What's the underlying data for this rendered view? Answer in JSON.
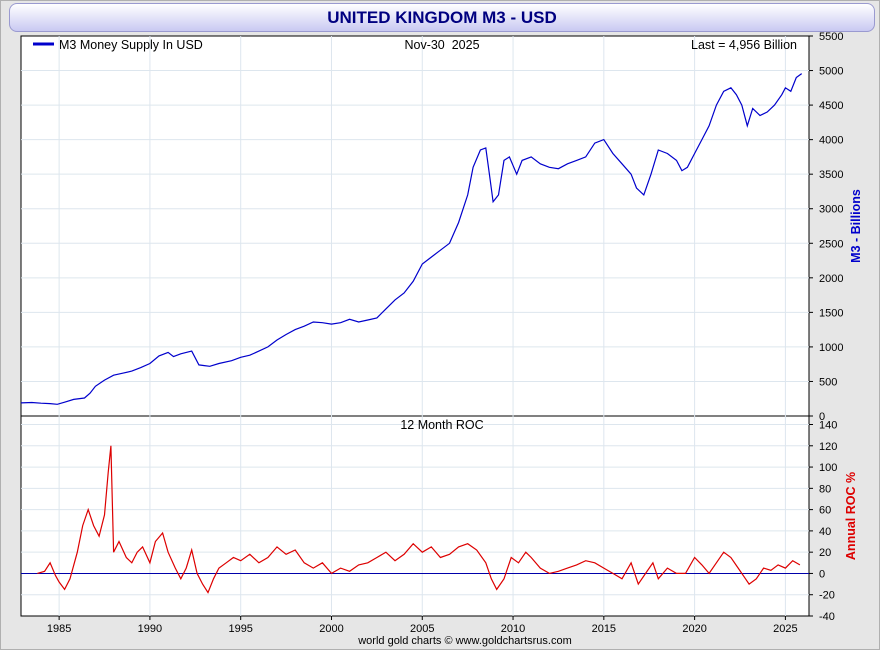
{
  "header": {
    "title": "UNITED KINGDOM M3 - USD"
  },
  "chart_data": [
    {
      "type": "line",
      "title": "Nov-30  2025",
      "legend": "M3 Money Supply In USD",
      "last_label": "Last = 4,956 Billion",
      "ylabel": "M3 - Billions",
      "ylim": [
        0,
        5500
      ],
      "yticks": [
        0,
        500,
        1000,
        1500,
        2000,
        2500,
        3000,
        3500,
        4000,
        4500,
        5000,
        5500
      ],
      "xlim": [
        1982.9,
        2026.3
      ],
      "color": "#0000cc",
      "grid": true,
      "legend_position": "top-left",
      "series": [
        {
          "name": "M3 Money Supply In USD",
          "x": [
            1982.9,
            1983.5,
            1984.0,
            1984.5,
            1984.9,
            1985.3,
            1985.8,
            1986.4,
            1986.7,
            1987.0,
            1987.5,
            1988.0,
            1988.5,
            1989.0,
            1989.5,
            1990.0,
            1990.5,
            1991.0,
            1991.3,
            1991.7,
            1992.3,
            1992.7,
            1993.0,
            1993.3,
            1993.8,
            1994.5,
            1995.0,
            1995.5,
            1996.0,
            1996.5,
            1997.0,
            1997.5,
            1998.0,
            1998.5,
            1999.0,
            1999.5,
            2000.0,
            2000.5,
            2001.0,
            2001.5,
            2002.0,
            2002.5,
            2003.0,
            2003.5,
            2004.0,
            2004.5,
            2005.0,
            2005.5,
            2006.0,
            2006.5,
            2007.0,
            2007.5,
            2007.8,
            2008.2,
            2008.5,
            2008.7,
            2008.9,
            2009.2,
            2009.5,
            2009.8,
            2010.2,
            2010.5,
            2011.0,
            2011.5,
            2012.0,
            2012.5,
            2013.0,
            2013.5,
            2014.0,
            2014.5,
            2015.0,
            2015.5,
            2016.0,
            2016.5,
            2016.8,
            2017.2,
            2017.6,
            2018.0,
            2018.5,
            2019.0,
            2019.3,
            2019.6,
            2020.0,
            2020.4,
            2020.8,
            2021.2,
            2021.6,
            2022.0,
            2022.3,
            2022.6,
            2022.9,
            2023.2,
            2023.6,
            2024.0,
            2024.4,
            2024.8,
            2025.0,
            2025.3,
            2025.6,
            2025.9
          ],
          "values": [
            190,
            195,
            185,
            180,
            170,
            200,
            240,
            260,
            330,
            430,
            520,
            590,
            620,
            650,
            700,
            760,
            870,
            920,
            860,
            900,
            940,
            740,
            730,
            720,
            760,
            800,
            850,
            880,
            940,
            1000,
            1100,
            1180,
            1250,
            1300,
            1360,
            1350,
            1330,
            1350,
            1400,
            1360,
            1390,
            1420,
            1550,
            1680,
            1780,
            1950,
            2200,
            2300,
            2400,
            2500,
            2800,
            3200,
            3600,
            3850,
            3880,
            3500,
            3100,
            3200,
            3700,
            3750,
            3500,
            3700,
            3750,
            3650,
            3600,
            3580,
            3650,
            3700,
            3750,
            3950,
            4000,
            3800,
            3650,
            3500,
            3300,
            3200,
            3500,
            3850,
            3800,
            3700,
            3550,
            3600,
            3800,
            4000,
            4200,
            4500,
            4700,
            4750,
            4650,
            4500,
            4200,
            4450,
            4350,
            4400,
            4500,
            4650,
            4750,
            4700,
            4900,
            4956
          ]
        }
      ]
    },
    {
      "type": "line",
      "title": "12 Month ROC",
      "ylabel": "Annual ROC %",
      "ylim": [
        -40,
        148
      ],
      "yticks": [
        -40,
        -20,
        0,
        20,
        40,
        60,
        80,
        100,
        120,
        140
      ],
      "xlim": [
        1982.9,
        2026.3
      ],
      "xticks": [
        1985,
        1990,
        1995,
        2000,
        2005,
        2010,
        2015,
        2020,
        2025
      ],
      "color": "#dd0000",
      "zero_line_color": "#0000aa",
      "grid": true,
      "series": [
        {
          "name": "12 Month ROC",
          "x": [
            1983.8,
            1984.2,
            1984.5,
            1984.8,
            1985.0,
            1985.3,
            1985.6,
            1986.0,
            1986.3,
            1986.6,
            1986.9,
            1987.2,
            1987.5,
            1987.7,
            1987.85,
            1988.0,
            1988.3,
            1988.7,
            1989.0,
            1989.3,
            1989.6,
            1990.0,
            1990.3,
            1990.7,
            1991.0,
            1991.4,
            1991.7,
            1992.0,
            1992.3,
            1992.6,
            1992.9,
            1993.2,
            1993.5,
            1993.8,
            1994.2,
            1994.6,
            1995.0,
            1995.5,
            1996.0,
            1996.5,
            1997.0,
            1997.5,
            1998.0,
            1998.5,
            1999.0,
            1999.5,
            2000.0,
            2000.5,
            2001.0,
            2001.5,
            2002.0,
            2002.5,
            2003.0,
            2003.5,
            2004.0,
            2004.5,
            2005.0,
            2005.5,
            2006.0,
            2006.5,
            2007.0,
            2007.5,
            2008.0,
            2008.5,
            2008.8,
            2009.1,
            2009.5,
            2009.9,
            2010.3,
            2010.7,
            2011.0,
            2011.5,
            2012.0,
            2012.5,
            2013.0,
            2013.5,
            2014.0,
            2014.5,
            2015.0,
            2015.5,
            2016.0,
            2016.5,
            2016.9,
            2017.3,
            2017.7,
            2018.0,
            2018.5,
            2019.0,
            2019.5,
            2020.0,
            2020.4,
            2020.8,
            2021.2,
            2021.6,
            2022.0,
            2022.4,
            2022.8,
            2023.0,
            2023.4,
            2023.8,
            2024.2,
            2024.6,
            2025.0,
            2025.4,
            2025.8
          ],
          "values": [
            0,
            2,
            10,
            -2,
            -8,
            -15,
            -5,
            20,
            45,
            60,
            45,
            35,
            55,
            95,
            120,
            20,
            30,
            15,
            10,
            20,
            25,
            10,
            30,
            38,
            20,
            5,
            -5,
            5,
            22,
            0,
            -10,
            -18,
            -5,
            5,
            10,
            15,
            12,
            18,
            10,
            15,
            25,
            18,
            22,
            10,
            5,
            10,
            0,
            5,
            2,
            8,
            10,
            15,
            20,
            12,
            18,
            28,
            20,
            25,
            15,
            18,
            25,
            28,
            22,
            10,
            -5,
            -15,
            -5,
            15,
            10,
            20,
            15,
            5,
            0,
            2,
            5,
            8,
            12,
            10,
            5,
            0,
            -5,
            10,
            -10,
            0,
            10,
            -5,
            5,
            0,
            0,
            15,
            8,
            0,
            10,
            20,
            15,
            5,
            -5,
            -10,
            -5,
            5,
            3,
            8,
            5,
            12,
            8
          ]
        }
      ]
    }
  ],
  "footer": {
    "credit": "world gold charts © www.goldchartsrus.com"
  }
}
